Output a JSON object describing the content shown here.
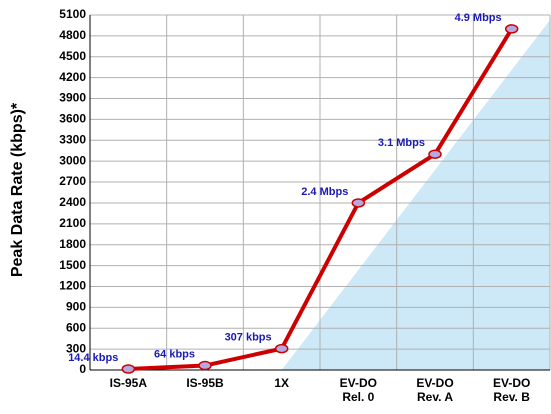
{
  "chart_data": {
    "type": "line",
    "y_label": "Peak Data Rate (kbps)*",
    "categories": [
      "IS-95A",
      "IS-95B",
      "1X",
      "EV-DO\nRel. 0",
      "EV-DO\nRev. A",
      "EV-DO\nRev. B"
    ],
    "series": [
      {
        "name": "Peak Data Rate",
        "color": "#cc0000",
        "values": [
          14.4,
          64,
          307,
          2400,
          3100,
          4900
        ],
        "value_labels": [
          "14.4 kbps",
          "64 kbps",
          "307 kbps",
          "2.4 Mbps",
          "3.1 Mbps",
          "4.9 Mbps"
        ]
      }
    ],
    "ylim": [
      0,
      5100
    ],
    "yticks": [
      0,
      300,
      600,
      900,
      1200,
      1500,
      1800,
      2100,
      2400,
      2700,
      3000,
      3300,
      3600,
      3900,
      4200,
      4500,
      4800,
      5100
    ],
    "grid": true
  }
}
